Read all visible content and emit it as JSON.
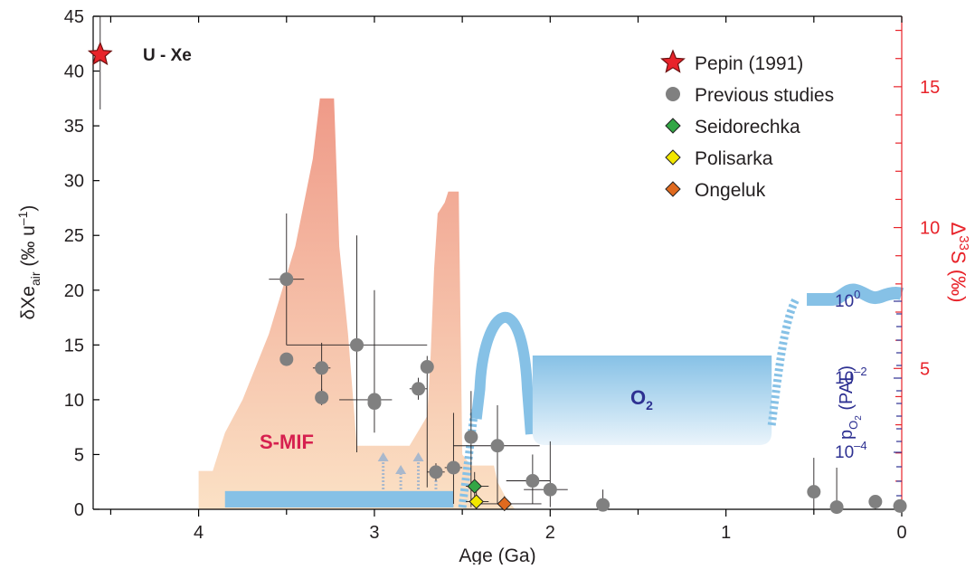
{
  "chart_data": {
    "type": "scatter",
    "xlabel": "Age (Ga)",
    "ylabel_left": {
      "main": "δXe",
      "sub": "air",
      "unit": " (‰ u",
      "sup": "–1",
      "close": ")"
    },
    "ylabel_right": {
      "delta": "Δ",
      "sup": "33",
      "rest": "S (‰)"
    },
    "o2_axis_label": {
      "p": "p",
      "sub1": "O",
      "sub2": "2",
      "unit": " (PAL)"
    },
    "xlim": [
      4.6,
      0
    ],
    "ylim_left": [
      0,
      45
    ],
    "ylim_right": [
      0,
      17.5
    ],
    "x_ticks": [
      "4",
      "3",
      "2",
      "1",
      "0"
    ],
    "y_ticks_left": [
      "0",
      "5",
      "10",
      "15",
      "20",
      "25",
      "30",
      "35",
      "40",
      "45"
    ],
    "y_ticks_right": [
      "5",
      "10",
      "15"
    ],
    "o2_ticks": [
      {
        "base": "10",
        "exp": "0"
      },
      {
        "base": "10",
        "exp": "–2"
      },
      {
        "base": "10",
        "exp": "–4"
      }
    ],
    "annotations": {
      "uxe": "U - Xe",
      "smif": "S-MIF",
      "o2": {
        "main": "O",
        "sub": "2"
      }
    },
    "colors": {
      "star": "#e8232a",
      "previous": "#808080",
      "seidorechka": "#33a645",
      "polisarka": "#f2e600",
      "ongeluk": "#e06a1f",
      "o2_band": "#86c1e6",
      "smif_top": "#ef9a88",
      "smif_bottom": "#fbe1c5",
      "right_axis": "#e8232a",
      "o2_axis": "#2e3192"
    },
    "legend": [
      {
        "label": "Pepin (1991)",
        "marker": "star"
      },
      {
        "label": "Previous studies",
        "marker": "circle"
      },
      {
        "label": "Seidorechka",
        "marker": "diamond"
      },
      {
        "label": "Polisarka",
        "marker": "diamond"
      },
      {
        "label": "Ongeluk",
        "marker": "diamond"
      }
    ],
    "series": [
      {
        "name": "Pepin (1991)",
        "points": [
          {
            "x": 4.56,
            "y": 41.5,
            "ylo": 36.5,
            "yhi": 45
          }
        ]
      },
      {
        "name": "Previous studies",
        "points": [
          {
            "x": 3.5,
            "y": 21.0,
            "ylo": 15.0,
            "yhi": 27.0,
            "xlo": 3.4,
            "xhi": 3.6
          },
          {
            "x": 3.5,
            "y": 13.7
          },
          {
            "x": 3.3,
            "y": 12.9,
            "ylo": 10.5,
            "yhi": 15.2,
            "xlo": 3.25,
            "xhi": 3.35
          },
          {
            "x": 3.3,
            "y": 10.2,
            "ylo": 9.5,
            "yhi": 11.0
          },
          {
            "x": 3.1,
            "y": 15.0,
            "ylo": 5.2,
            "yhi": 25.0,
            "xlo": 3.5,
            "xhi": 2.7
          },
          {
            "x": 3.0,
            "y": 10.0,
            "ylo": 7.0,
            "yhi": 20.0,
            "xlo": 3.2,
            "xhi": 2.9
          },
          {
            "x": 3.0,
            "y": 9.7
          },
          {
            "x": 2.75,
            "y": 11.0,
            "ylo": 10.0,
            "yhi": 12.0,
            "xlo": 2.8,
            "xhi": 2.7
          },
          {
            "x": 2.7,
            "y": 13.0,
            "ylo": 2.0,
            "yhi": 14.0
          },
          {
            "x": 2.65,
            "y": 3.4,
            "ylo": 2.6,
            "yhi": 4.2,
            "xlo": 2.7,
            "xhi": 2.6
          },
          {
            "x": 2.55,
            "y": 3.8,
            "ylo": 0.5,
            "yhi": 8.8,
            "xlo": 2.6,
            "xhi": 2.5
          },
          {
            "x": 2.45,
            "y": 6.6,
            "ylo": 0.2,
            "yhi": 10.8
          },
          {
            "x": 2.3,
            "y": 5.8,
            "ylo": 0.5,
            "yhi": 9.5,
            "xlo": 2.55,
            "xhi": 2.06
          },
          {
            "x": 2.1,
            "y": 2.6,
            "ylo": 0.5,
            "yhi": 5.0,
            "xlo": 2.25,
            "xhi": 2.0
          },
          {
            "x": 2.0,
            "y": 1.8,
            "ylo": 0.2,
            "yhi": 6.2,
            "xlo": 2.15,
            "xhi": 1.9
          },
          {
            "x": 1.7,
            "y": 0.4,
            "ylo": 0.0,
            "yhi": 1.8
          },
          {
            "x": 0.5,
            "y": 1.6,
            "ylo": 0.0,
            "yhi": 4.7
          },
          {
            "x": 0.37,
            "y": 0.2,
            "ylo": 0.0,
            "yhi": 3.8
          },
          {
            "x": 0.15,
            "y": 0.7,
            "ylo": 0.0,
            "yhi": 1.2
          },
          {
            "x": 0.01,
            "y": 0.3,
            "ylo": 0.0,
            "yhi": 0.9
          }
        ]
      },
      {
        "name": "Seidorechka",
        "points": [
          {
            "x": 2.43,
            "y": 2.1,
            "ylo": 0.8,
            "yhi": 3.4,
            "xlo": 2.48,
            "xhi": 2.35
          }
        ]
      },
      {
        "name": "Polisarka",
        "points": [
          {
            "x": 2.42,
            "y": 0.7,
            "ylo": 0.0,
            "yhi": 2.3,
            "xlo": 2.48,
            "xhi": 2.35
          }
        ]
      },
      {
        "name": "Ongeluk",
        "points": [
          {
            "x": 2.26,
            "y": 0.5,
            "ylo": 0.0,
            "yhi": 1.2,
            "xlo": 2.45,
            "xhi": 2.05
          }
        ]
      }
    ],
    "smif_envelope": {
      "x": [
        4.0,
        3.92,
        3.88,
        3.85,
        3.75,
        3.6,
        3.45,
        3.35,
        3.31,
        3.23,
        3.2,
        3.15,
        3.1,
        2.93,
        2.8,
        2.7,
        2.68,
        2.66,
        2.64,
        2.6,
        2.58,
        2.52,
        2.5,
        2.45,
        2.4,
        2.35,
        2.32,
        2.3,
        2.25,
        2.2
      ],
      "y": [
        3.5,
        3.5,
        5.5,
        7.0,
        10.0,
        16.0,
        24.0,
        32.0,
        37.5,
        37.5,
        24.0,
        16.0,
        5.8,
        5.8,
        5.8,
        8.5,
        14.0,
        22.0,
        27.0,
        28.0,
        29.0,
        29.0,
        5.0,
        4.0,
        4.0,
        4.0,
        4.0,
        2.5,
        1.0,
        0.0
      ]
    },
    "o2_band_low": {
      "x": [
        3.85,
        2.55
      ],
      "level": 1.5
    },
    "arrows_x": [
      2.95,
      2.85,
      2.75,
      2.65
    ]
  }
}
